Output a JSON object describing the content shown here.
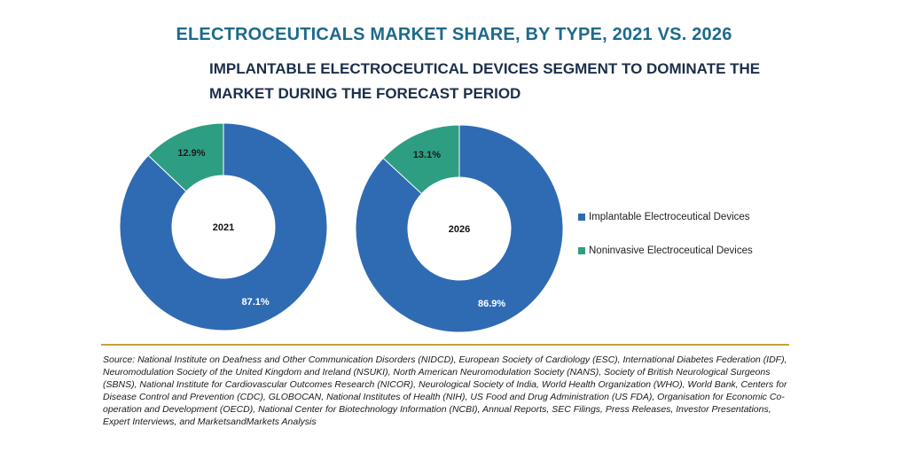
{
  "title": "ELECTROCEUTICALS MARKET SHARE, BY TYPE, 2021 VS. 2026",
  "subtitle": "IMPLANTABLE ELECTROCEUTICAL DEVICES SEGMENT TO DOMINATE THE MARKET DURING THE FORECAST PERIOD",
  "colors": {
    "title": "#1d6a8c",
    "implantable": "#2f6bb3",
    "noninvasive": "#2e9e82",
    "divider": "#c8a23a"
  },
  "chart_data": [
    {
      "type": "pie",
      "center_label": "2021",
      "slices": [
        {
          "label": "Implantable Electroceutical Devices",
          "value": 87.1,
          "display": "87.1%"
        },
        {
          "label": "Noninvasive Electroceutical Devices",
          "value": 12.9,
          "display": "12.9%"
        }
      ]
    },
    {
      "type": "pie",
      "center_label": "2026",
      "slices": [
        {
          "label": "Implantable Electroceutical Devices",
          "value": 86.9,
          "display": "86.9%"
        },
        {
          "label": "Noninvasive Electroceutical Devices",
          "value": 13.1,
          "display": "13.1%"
        }
      ]
    }
  ],
  "legend": [
    {
      "label": "Implantable Electroceutical Devices",
      "color_key": "implantable"
    },
    {
      "label": "Noninvasive Electroceutical Devices",
      "color_key": "noninvasive"
    }
  ],
  "source": "Source: National Institute on Deafness and Other Communication Disorders (NIDCD), European Society of Cardiology (ESC), International Diabetes Federation (IDF), Neuromodulation Society of the United Kingdom and Ireland (NSUKI), North American Neuromodulation Society (NANS), Society of British Neurological Surgeons (SBNS), National Institute for Cardiovascular Outcomes Research (NICOR), Neurological Society of India, World Health Organization (WHO), World Bank, Centers for Disease Control and Prevention (CDC), GLOBOCAN, National Institutes of Health (NIH), US Food and Drug Administration (US FDA), Organisation for Economic Co-operation and Development (OECD), National Center for Biotechnology Information (NCBI), Annual Reports, SEC Filings, Press Releases, Investor Presentations, Expert Interviews, and MarketsandMarkets Analysis"
}
